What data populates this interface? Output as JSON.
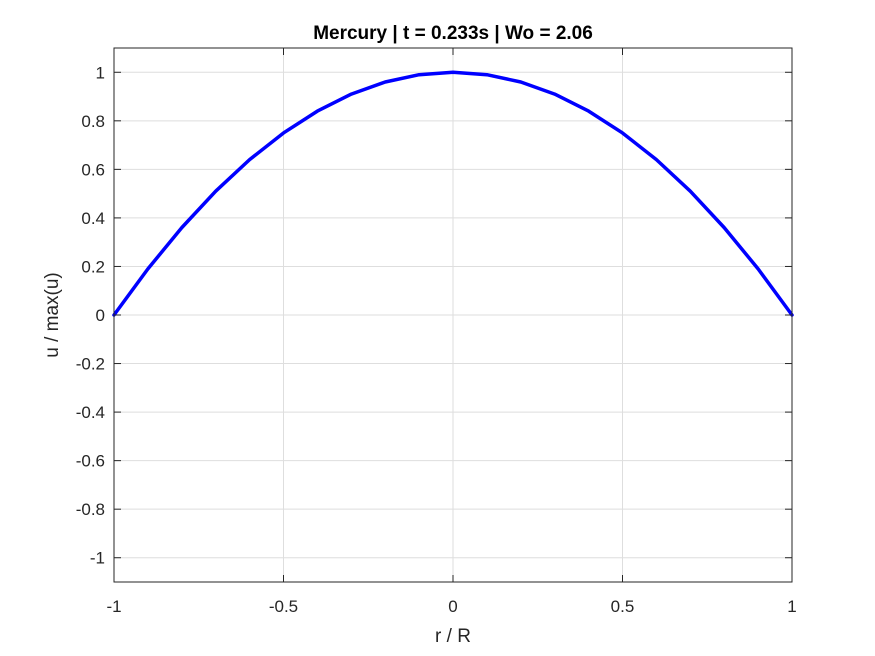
{
  "chart_data": {
    "type": "line",
    "title": "Mercury | t = 0.233s | Wo = 2.06",
    "xlabel": "r / R",
    "ylabel": "u / max(u)",
    "xlim": [
      -1,
      1
    ],
    "ylim": [
      -1.1,
      1.1
    ],
    "grid": true,
    "x_ticks": [
      -1,
      -0.5,
      0,
      0.5,
      1
    ],
    "x_tick_labels": [
      "-1",
      "-0.5",
      "0",
      "0.5",
      "1"
    ],
    "y_ticks": [
      -1,
      -0.8,
      -0.6,
      -0.4,
      -0.2,
      0,
      0.2,
      0.4,
      0.6,
      0.8,
      1
    ],
    "y_tick_labels": [
      "-1",
      "-0.8",
      "-0.6",
      "-0.4",
      "-0.2",
      "0",
      "0.2",
      "0.4",
      "0.6",
      "0.8",
      "1"
    ],
    "series": [
      {
        "color": "#0000ff",
        "x": [
          -1,
          -0.9,
          -0.8,
          -0.7,
          -0.6,
          -0.5,
          -0.4,
          -0.3,
          -0.2,
          -0.1,
          0,
          0.1,
          0.2,
          0.3,
          0.4,
          0.5,
          0.6,
          0.7,
          0.8,
          0.9,
          1
        ],
        "y": [
          0,
          0.19,
          0.36,
          0.51,
          0.64,
          0.75,
          0.84,
          0.91,
          0.96,
          0.99,
          1,
          0.99,
          0.96,
          0.91,
          0.84,
          0.75,
          0.64,
          0.51,
          0.36,
          0.19,
          0
        ]
      }
    ]
  }
}
